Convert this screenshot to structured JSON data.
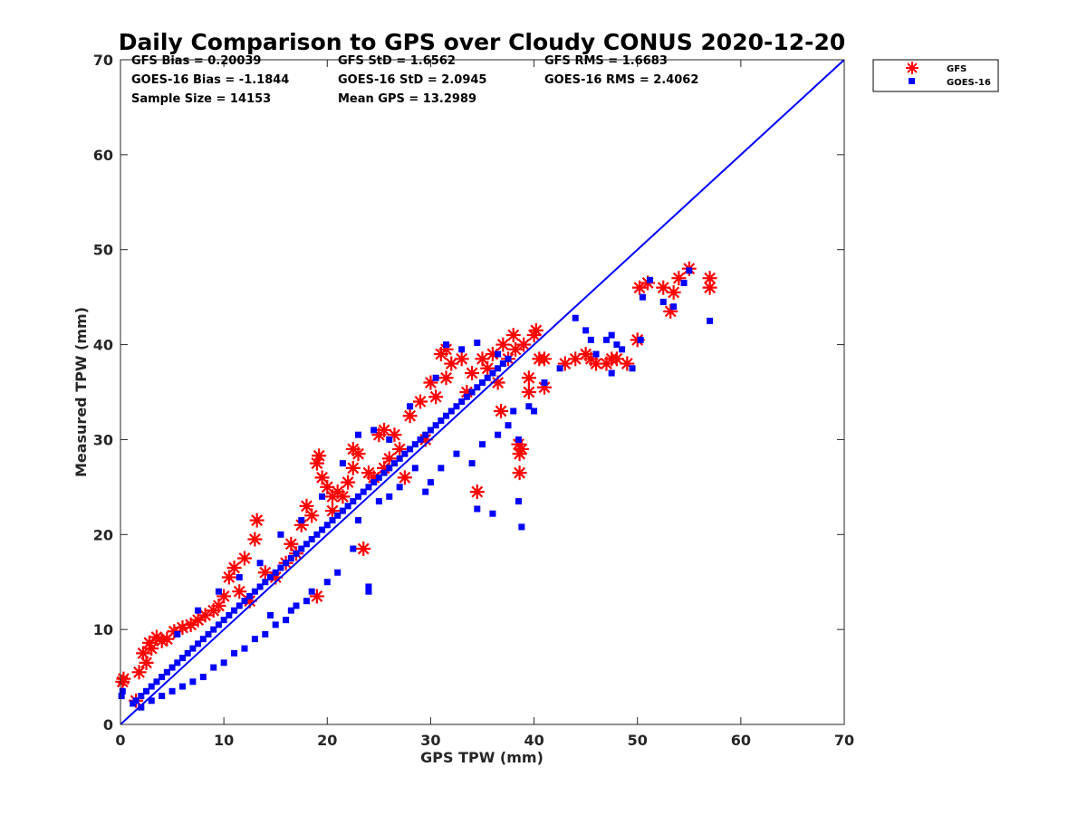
{
  "chart_data": {
    "type": "scatter",
    "title": "Daily Comparison to GPS over Cloudy CONUS 2020-12-20",
    "xlabel": "GPS TPW (mm)",
    "ylabel": "Measured TPW (mm)",
    "xlim": [
      0,
      70
    ],
    "ylim": [
      0,
      70
    ],
    "xticks": [
      "0",
      "10",
      "20",
      "30",
      "40",
      "50",
      "60",
      "70"
    ],
    "yticks": [
      "0",
      "10",
      "20",
      "30",
      "40",
      "50",
      "60",
      "70"
    ],
    "grid": false,
    "legend": {
      "placement": "outside-top-right",
      "entries": [
        "GFS",
        "GOES-16"
      ]
    },
    "reference_line": {
      "x": [
        0,
        70
      ],
      "y": [
        0,
        70
      ],
      "color": "#0000ff"
    },
    "stats": [
      "GFS Bias = 0.20039",
      "GFS StD = 1.6562",
      "GFS RMS = 1.6683",
      "GOES-16 Bias = -1.1844",
      "GOES-16 StD = 2.0945",
      "GOES-16 RMS = 2.4062",
      "Sample Size = 14153",
      "Mean GPS = 13.2989"
    ],
    "series": [
      {
        "name": "GFS",
        "marker": "asterisk",
        "color": "#ff0000",
        "points": [
          [
            0.2,
            4.5
          ],
          [
            0.3,
            4.8
          ],
          [
            1.8,
            5.5
          ],
          [
            2.2,
            7.5
          ],
          [
            2.8,
            8.6
          ],
          [
            3.5,
            9.2
          ],
          [
            4.0,
            8.8
          ],
          [
            4.5,
            9.0
          ],
          [
            5.2,
            9.8
          ],
          [
            6.0,
            10.2
          ],
          [
            6.8,
            10.5
          ],
          [
            7.5,
            11.0
          ],
          [
            8.2,
            11.5
          ],
          [
            9.0,
            12.0
          ],
          [
            10.0,
            13.5
          ],
          [
            10.5,
            15.5
          ],
          [
            11.0,
            16.5
          ],
          [
            12.0,
            17.5
          ],
          [
            13.0,
            19.5
          ],
          [
            13.2,
            21.5
          ],
          [
            14.0,
            16.0
          ],
          [
            15.0,
            15.5
          ],
          [
            16.0,
            17.0
          ],
          [
            17.0,
            18.0
          ],
          [
            17.5,
            21.0
          ],
          [
            18.0,
            23.0
          ],
          [
            18.5,
            22.0
          ],
          [
            19.0,
            27.5
          ],
          [
            19.2,
            28.3
          ],
          [
            19.5,
            26.0
          ],
          [
            20.0,
            25.0
          ],
          [
            20.5,
            24.0
          ],
          [
            21.0,
            24.5
          ],
          [
            21.5,
            24.0
          ],
          [
            22.0,
            25.5
          ],
          [
            22.5,
            29.0
          ],
          [
            23.0,
            28.5
          ],
          [
            23.5,
            18.5
          ],
          [
            24.0,
            26.5
          ],
          [
            25.0,
            30.5
          ],
          [
            25.5,
            31.0
          ],
          [
            26.0,
            28.0
          ],
          [
            27.0,
            29.0
          ],
          [
            28.0,
            32.5
          ],
          [
            29.0,
            34.0
          ],
          [
            30.0,
            36.0
          ],
          [
            30.5,
            34.5
          ],
          [
            31.0,
            39.0
          ],
          [
            31.5,
            39.5
          ],
          [
            32.0,
            38.0
          ],
          [
            33.0,
            38.5
          ],
          [
            34.0,
            37.0
          ],
          [
            34.5,
            24.5
          ],
          [
            35.0,
            38.5
          ],
          [
            35.5,
            37.5
          ],
          [
            36.0,
            39.0
          ],
          [
            36.5,
            36.0
          ],
          [
            37.0,
            40.0
          ],
          [
            37.5,
            38.5
          ],
          [
            38.0,
            41.0
          ],
          [
            38.2,
            39.5
          ],
          [
            38.5,
            29.5
          ],
          [
            38.6,
            28.5
          ],
          [
            38.6,
            26.5
          ],
          [
            39.0,
            40.0
          ],
          [
            39.5,
            36.5
          ],
          [
            40.0,
            41.0
          ],
          [
            40.2,
            41.5
          ],
          [
            40.5,
            38.5
          ],
          [
            41.0,
            35.5
          ],
          [
            41.0,
            38.5
          ],
          [
            43.0,
            38.0
          ],
          [
            44.0,
            38.5
          ],
          [
            45.0,
            39.0
          ],
          [
            45.5,
            38.5
          ],
          [
            46.0,
            38.0
          ],
          [
            47.0,
            38.0
          ],
          [
            47.5,
            38.5
          ],
          [
            48.0,
            38.5
          ],
          [
            49.0,
            38.0
          ],
          [
            50.0,
            40.5
          ],
          [
            50.2,
            46.0
          ],
          [
            51.0,
            46.5
          ],
          [
            52.5,
            46.0
          ],
          [
            53.2,
            43.5
          ],
          [
            53.5,
            45.5
          ],
          [
            54.0,
            47.0
          ],
          [
            55.0,
            48.0
          ],
          [
            57.0,
            47.0
          ],
          [
            57.0,
            46.0
          ],
          [
            9.5,
            12.5
          ],
          [
            11.5,
            14.0
          ],
          [
            12.5,
            13.0
          ],
          [
            19.0,
            13.5
          ],
          [
            25.5,
            27.0
          ],
          [
            27.5,
            26.0
          ],
          [
            29.5,
            30.0
          ],
          [
            33.5,
            35.0
          ],
          [
            36.8,
            33.0
          ],
          [
            38.8,
            29.0
          ],
          [
            39.5,
            35.0
          ],
          [
            1.5,
            2.5
          ],
          [
            2.5,
            6.5
          ],
          [
            3.0,
            8.0
          ],
          [
            16.5,
            19.0
          ],
          [
            20.5,
            22.5
          ],
          [
            22.5,
            27.0
          ],
          [
            24.5,
            26.0
          ],
          [
            26.5,
            30.5
          ],
          [
            31.5,
            36.5
          ]
        ]
      },
      {
        "name": "GOES-16",
        "marker": "square",
        "color": "#0000ff",
        "points": [
          [
            0.1,
            3.0
          ],
          [
            0.2,
            3.5
          ],
          [
            1.2,
            2.2
          ],
          [
            1.5,
            2.5
          ],
          [
            2.0,
            3.0
          ],
          [
            2.5,
            3.5
          ],
          [
            3.0,
            4.0
          ],
          [
            3.5,
            4.5
          ],
          [
            4.0,
            5.0
          ],
          [
            4.5,
            5.5
          ],
          [
            5.0,
            6.0
          ],
          [
            5.5,
            6.5
          ],
          [
            6.0,
            7.0
          ],
          [
            6.5,
            7.5
          ],
          [
            7.0,
            8.0
          ],
          [
            7.5,
            8.5
          ],
          [
            8.0,
            9.0
          ],
          [
            8.5,
            9.5
          ],
          [
            9.0,
            10.0
          ],
          [
            9.5,
            10.5
          ],
          [
            10.0,
            11.0
          ],
          [
            10.5,
            11.5
          ],
          [
            11.0,
            12.0
          ],
          [
            11.5,
            12.5
          ],
          [
            12.0,
            13.0
          ],
          [
            12.5,
            13.5
          ],
          [
            13.0,
            14.0
          ],
          [
            13.5,
            14.5
          ],
          [
            14.0,
            15.0
          ],
          [
            14.5,
            15.5
          ],
          [
            15.0,
            16.0
          ],
          [
            15.5,
            16.5
          ],
          [
            16.0,
            17.0
          ],
          [
            16.5,
            17.5
          ],
          [
            17.0,
            18.0
          ],
          [
            17.5,
            18.5
          ],
          [
            18.0,
            19.0
          ],
          [
            18.5,
            19.5
          ],
          [
            19.0,
            20.0
          ],
          [
            19.5,
            20.5
          ],
          [
            20.0,
            21.0
          ],
          [
            20.5,
            21.5
          ],
          [
            21.0,
            22.0
          ],
          [
            21.5,
            22.5
          ],
          [
            22.0,
            23.0
          ],
          [
            22.5,
            23.5
          ],
          [
            23.0,
            24.0
          ],
          [
            23.5,
            24.5
          ],
          [
            24.0,
            25.0
          ],
          [
            24.5,
            25.5
          ],
          [
            25.0,
            26.0
          ],
          [
            25.5,
            26.5
          ],
          [
            26.0,
            27.0
          ],
          [
            26.5,
            27.5
          ],
          [
            27.0,
            28.0
          ],
          [
            27.5,
            28.5
          ],
          [
            28.0,
            29.0
          ],
          [
            28.5,
            29.5
          ],
          [
            29.0,
            30.0
          ],
          [
            29.5,
            30.5
          ],
          [
            30.0,
            31.0
          ],
          [
            30.5,
            31.5
          ],
          [
            31.0,
            32.0
          ],
          [
            31.5,
            32.5
          ],
          [
            32.0,
            33.0
          ],
          [
            32.5,
            33.5
          ],
          [
            33.0,
            34.0
          ],
          [
            33.5,
            34.5
          ],
          [
            34.0,
            35.0
          ],
          [
            34.5,
            35.5
          ],
          [
            35.0,
            36.0
          ],
          [
            35.5,
            36.5
          ],
          [
            36.0,
            37.0
          ],
          [
            36.5,
            37.5
          ],
          [
            37.0,
            38.0
          ],
          [
            37.5,
            38.5
          ],
          [
            38.0,
            33.0
          ],
          [
            38.5,
            30.0
          ],
          [
            38.8,
            20.8
          ],
          [
            38.5,
            23.5
          ],
          [
            36.0,
            22.2
          ],
          [
            34.5,
            22.7
          ],
          [
            39.5,
            33.5
          ],
          [
            40.0,
            33.0
          ],
          [
            41.0,
            36.0
          ],
          [
            42.5,
            37.5
          ],
          [
            44.0,
            42.8
          ],
          [
            45.0,
            41.5
          ],
          [
            45.5,
            40.5
          ],
          [
            46.0,
            39.0
          ],
          [
            47.0,
            40.5
          ],
          [
            47.5,
            41.0
          ],
          [
            48.0,
            40.0
          ],
          [
            48.5,
            39.5
          ],
          [
            47.5,
            37.0
          ],
          [
            49.5,
            37.5
          ],
          [
            50.3,
            40.5
          ],
          [
            50.5,
            45.0
          ],
          [
            51.2,
            46.8
          ],
          [
            52.5,
            44.5
          ],
          [
            53.5,
            44.0
          ],
          [
            54.5,
            46.5
          ],
          [
            55.0,
            47.8
          ],
          [
            57.0,
            42.5
          ],
          [
            24.0,
            14.0
          ],
          [
            24.0,
            14.5
          ],
          [
            21.0,
            16.0
          ],
          [
            20.0,
            15.0
          ],
          [
            18.5,
            14.0
          ],
          [
            17.0,
            12.5
          ],
          [
            16.0,
            11.0
          ],
          [
            15.0,
            10.5
          ],
          [
            14.0,
            9.5
          ],
          [
            13.0,
            9.0
          ],
          [
            12.0,
            8.0
          ],
          [
            11.0,
            7.5
          ],
          [
            10.0,
            6.5
          ],
          [
            9.0,
            6.0
          ],
          [
            8.0,
            5.0
          ],
          [
            7.0,
            4.5
          ],
          [
            6.0,
            4.0
          ],
          [
            5.0,
            3.5
          ],
          [
            4.0,
            3.0
          ],
          [
            3.0,
            2.5
          ],
          [
            2.0,
            1.8
          ],
          [
            5.5,
            9.5
          ],
          [
            7.5,
            12.0
          ],
          [
            9.5,
            14.0
          ],
          [
            11.5,
            15.5
          ],
          [
            13.5,
            17.0
          ],
          [
            15.5,
            20.0
          ],
          [
            17.5,
            21.5
          ],
          [
            19.5,
            24.0
          ],
          [
            21.5,
            27.5
          ],
          [
            23.0,
            30.5
          ],
          [
            24.5,
            31.0
          ],
          [
            26.0,
            30.0
          ],
          [
            28.0,
            33.5
          ],
          [
            30.5,
            36.5
          ],
          [
            31.5,
            40.0
          ],
          [
            33.0,
            39.5
          ],
          [
            34.5,
            40.2
          ],
          [
            36.5,
            39.0
          ],
          [
            30.0,
            25.5
          ],
          [
            31.0,
            27.0
          ],
          [
            32.5,
            28.5
          ],
          [
            34.0,
            27.5
          ],
          [
            35.0,
            29.5
          ],
          [
            36.5,
            30.5
          ],
          [
            37.5,
            31.5
          ],
          [
            28.5,
            27.0
          ],
          [
            27.0,
            25.0
          ],
          [
            29.5,
            24.5
          ],
          [
            26.0,
            24.0
          ],
          [
            22.5,
            18.5
          ],
          [
            23.0,
            21.5
          ],
          [
            25.0,
            23.5
          ],
          [
            18.0,
            13.0
          ],
          [
            16.5,
            12.0
          ],
          [
            14.5,
            11.5
          ]
        ]
      }
    ]
  }
}
